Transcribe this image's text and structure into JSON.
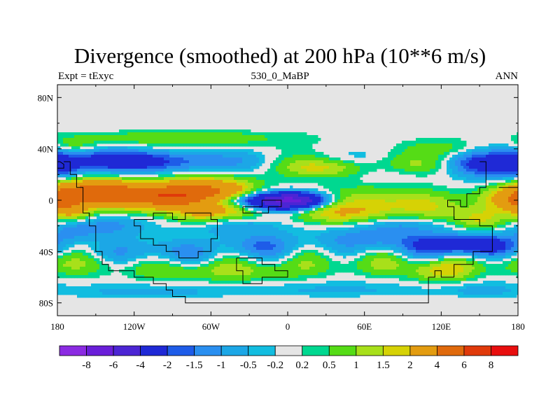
{
  "chart_data": {
    "type": "heatmap",
    "title": "Divergence (smoothed) at 200 hPa (10**6 m/s)",
    "left_string": "Expt = tExyc",
    "center_string": "530_0_MaBP",
    "right_string": "ANN",
    "x_ticks": [
      "180",
      "120W",
      "60W",
      "0",
      "60E",
      "120E",
      "180"
    ],
    "x_tick_values": [
      -180,
      -120,
      -60,
      0,
      60,
      120,
      180
    ],
    "y_ticks": [
      "80N",
      "40N",
      "0",
      "40S",
      "80S"
    ],
    "y_tick_values": [
      80,
      40,
      0,
      -40,
      -80
    ],
    "xlim": [
      -180,
      180
    ],
    "ylim": [
      -90,
      90
    ],
    "colorbar": {
      "colors": [
        "#8b2be2",
        "#6a1ed9",
        "#4c25d4",
        "#1f29d6",
        "#1e5ce8",
        "#2a8ff0",
        "#1ca7e6",
        "#12bde0",
        "#e5e5e5",
        "#00d890",
        "#55dc16",
        "#a8e01a",
        "#d6d205",
        "#e39c10",
        "#e06a0c",
        "#e03a0a",
        "#e80e0e"
      ],
      "labels": [
        "-8",
        "-6",
        "-4",
        "-2",
        "-1.5",
        "-1",
        "-0.5",
        "-0.2",
        "0.2",
        "0.5",
        "1",
        "1.5",
        "2",
        "4",
        "6",
        "8"
      ],
      "levels": [
        -8,
        -6,
        -4,
        -2,
        -1.5,
        -1,
        -0.5,
        -0.2,
        0.2,
        0.5,
        1,
        1.5,
        2,
        4,
        6,
        8
      ]
    },
    "field_features": [
      {
        "name": "equatorial divergence band (western)",
        "lon": [
          -170,
          -20
        ],
        "lat": [
          -5,
          15
        ],
        "level": 4
      },
      {
        "name": "central convergence core",
        "lon": [
          -50,
          20
        ],
        "lat": [
          -6,
          6
        ],
        "level": -4
      },
      {
        "name": "NH subtropical convergence",
        "lon": [
          -150,
          -40
        ],
        "lat": [
          20,
          40
        ],
        "level": -1.5
      },
      {
        "name": "NH divergence ridge",
        "lon": [
          -10,
          120
        ],
        "lat": [
          20,
          35
        ],
        "level": 1
      },
      {
        "name": "SH storm-track divergence",
        "lon": [
          -180,
          180
        ],
        "lat": [
          -60,
          -45
        ],
        "level": 0.5
      },
      {
        "name": "SH convergence",
        "lon": [
          100,
          160
        ],
        "lat": [
          -40,
          -25
        ],
        "level": -2
      }
    ]
  }
}
